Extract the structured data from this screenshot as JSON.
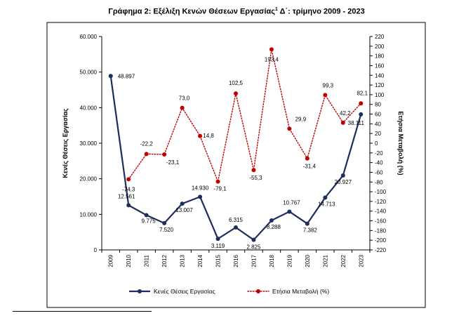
{
  "chart_data": {
    "type": "line",
    "title": "Γράφημα 2: Εξέλιξη Κενών Θέσεων Εργασίας",
    "title_superscript": "1",
    "title_suffix": " Δ΄: τρίμηνο 2009 - 2023",
    "categories": [
      "2009",
      "2010",
      "2011",
      "2012",
      "2013",
      "2014",
      "2015",
      "2016",
      "2017",
      "2018",
      "2019",
      "2020",
      "2021",
      "2022",
      "2023"
    ],
    "ylabel": "Κενές Θέσεις Εργασίας",
    "y2label": "Ετήσια Μεταβολή (%)",
    "ylim": [
      0,
      60000
    ],
    "y2lim": [
      -220,
      220
    ],
    "yticks": [
      "0",
      "10.000",
      "20.000",
      "30.000",
      "40.000",
      "50.000",
      "60.000"
    ],
    "y2ticks": [
      "-220",
      "-200",
      "-180",
      "-160",
      "-140",
      "-120",
      "-100",
      "-80",
      "-60",
      "-40",
      "-20",
      "0",
      "20",
      "40",
      "60",
      "80",
      "100",
      "120",
      "140",
      "160",
      "180",
      "200",
      "220"
    ],
    "grid": false,
    "legend_position": "bottom",
    "series": [
      {
        "name": "Κενές Θέσεις Εργασίας",
        "axis": "left",
        "color": "#1f2d5c",
        "style": "solid",
        "values": [
          48897,
          12561,
          9775,
          7520,
          13007,
          14930,
          3119,
          6315,
          2825,
          8288,
          10767,
          7382,
          14713,
          20927,
          38111
        ],
        "labels": [
          "48.897",
          "12.561",
          "9.775",
          "7.520",
          "13.007",
          "14.930",
          "3.119",
          "6.315",
          "2.825",
          "8.288",
          "10.767",
          "7.382",
          "14.713",
          "20.927",
          "38.111"
        ]
      },
      {
        "name": "Ετήσια Μεταβολή (%)",
        "axis": "right",
        "color": "#c00000",
        "style": "dotted",
        "values": [
          null,
          -74.3,
          -22.2,
          -23.1,
          73.0,
          14.8,
          -79.1,
          102.5,
          -55.3,
          193.4,
          29.9,
          -31.4,
          99.3,
          42.2,
          82.1
        ],
        "labels": [
          null,
          "-74,3",
          "-22,2",
          "-23,1",
          "73,0",
          "14,8",
          "-79,1",
          "102,5",
          "-55,3",
          "193,4",
          "29,9",
          "-31,4",
          "99,3",
          "42,2",
          "82,1"
        ]
      }
    ]
  }
}
